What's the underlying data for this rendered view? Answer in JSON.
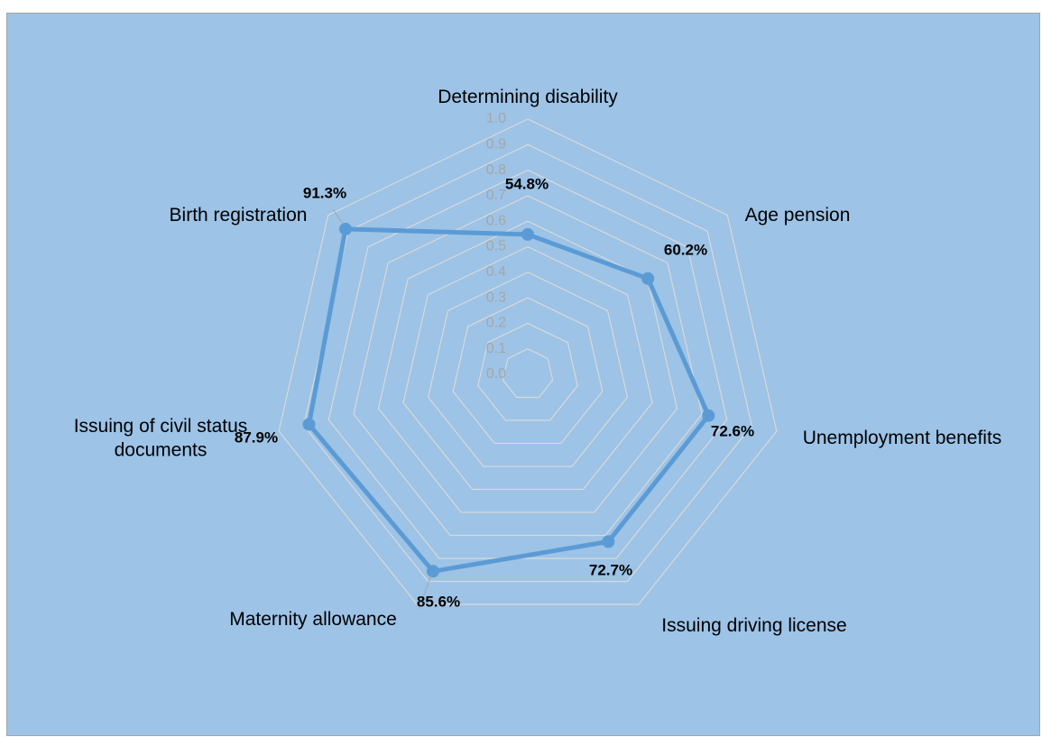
{
  "caption": "",
  "colors": {
    "plot_background": "#9dc3e6",
    "series_line": "#5b9bd5",
    "gridlines": "#d9d9d9",
    "tick_labels": "#a6a6a6"
  },
  "chart_data": {
    "type": "radar",
    "categories": [
      "Determining disability",
      "Age pension",
      "Unemployment benefits",
      "Issuing driving license",
      "Maternity allowance",
      "Issuing of civil status documents",
      "Birth registration"
    ],
    "category_labels": [
      [
        "Determining disability"
      ],
      [
        "Age pension"
      ],
      [
        "Unemployment benefits"
      ],
      [
        "Issuing driving license"
      ],
      [
        "Maternity allowance"
      ],
      [
        "Issuing of civil status",
        "documents"
      ],
      [
        "Birth registration"
      ]
    ],
    "series": [
      {
        "values": [
          0.548,
          0.602,
          0.726,
          0.727,
          0.856,
          0.879,
          0.913
        ],
        "labels": [
          "54.8%",
          "60.2%",
          "72.6%",
          "72.7%",
          "85.6%",
          "87.9%",
          "91.3%"
        ]
      }
    ],
    "rlim": [
      0,
      1
    ],
    "ticks": [
      "0.0",
      "0.1",
      "0.2",
      "0.3",
      "0.4",
      "0.5",
      "0.6",
      "0.7",
      "0.8",
      "0.9",
      "1.0"
    ],
    "grid": true,
    "legend": "none"
  }
}
